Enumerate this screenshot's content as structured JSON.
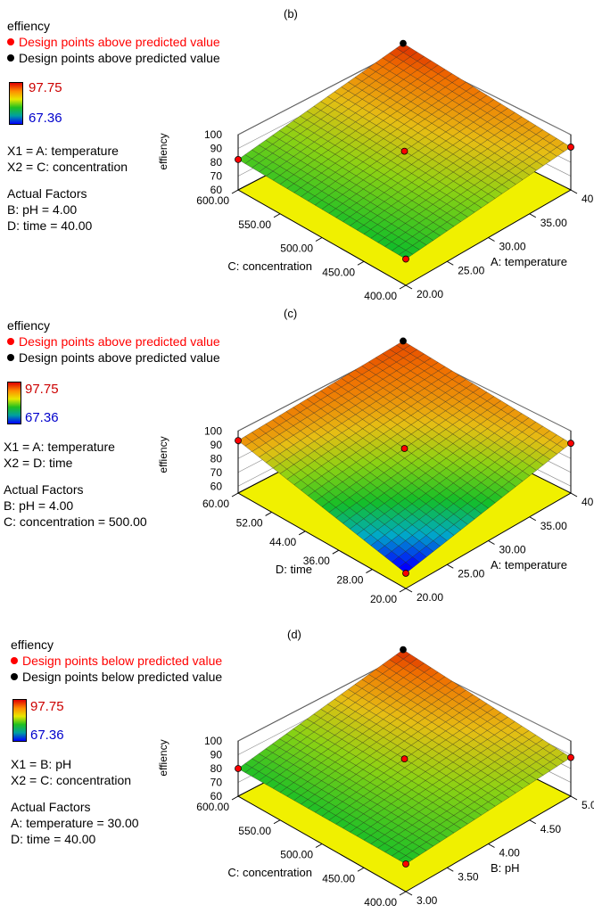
{
  "chart_data": [
    {
      "type": "surface3d",
      "panel_label": "(b)",
      "zlabel": "effiency",
      "legend": {
        "title": "effiency",
        "red_points": "Design points above predicted value",
        "black_points": "Design points above predicted value",
        "colorbar_max": "97.75",
        "colorbar_min": "67.36",
        "x1": "X1 = A: temperature",
        "x2": "X2 = C: concentration",
        "actual_factors_title": "Actual Factors",
        "factor1": "B: pH = 4.00",
        "factor2": "D: time = 40.00"
      },
      "xlabel": "A: temperature",
      "ylabel": "C: concentration",
      "x_ticks": [
        "20.00",
        "25.00",
        "30.00",
        "35.00",
        "40.00"
      ],
      "y_ticks": [
        "400.00",
        "450.00",
        "500.00",
        "550.00",
        "600.00"
      ],
      "z_ticks": [
        "60",
        "70",
        "80",
        "90",
        "100"
      ],
      "xlim": [
        20,
        40
      ],
      "ylim": [
        400,
        600
      ],
      "zlim": [
        60,
        100
      ],
      "corners": {
        "x0y0": 79,
        "x1y0": 91,
        "x0y1": 82,
        "x1y1": 97
      }
    },
    {
      "type": "surface3d",
      "panel_label": "(c)",
      "zlabel": "effiency",
      "legend": {
        "title": "effiency",
        "red_points": "Design points above predicted value",
        "black_points": "Design points above predicted value",
        "colorbar_max": "97.75",
        "colorbar_min": "67.36",
        "x1": "X1 = A: temperature",
        "x2": "X2 = D: time",
        "actual_factors_title": "Actual Factors",
        "factor1": "B: pH = 4.00",
        "factor2": "C: concentration = 500.00"
      },
      "xlabel": "A: temperature",
      "ylabel": "D: time",
      "x_ticks": [
        "20.00",
        "25.00",
        "30.00",
        "35.00",
        "40.00"
      ],
      "y_ticks": [
        "20.00",
        "28.00",
        "36.00",
        "44.00",
        "52.00",
        "60.00"
      ],
      "z_ticks": [
        "60",
        "70",
        "80",
        "90",
        "100"
      ],
      "xlim": [
        20,
        40
      ],
      "ylim": [
        20,
        60
      ],
      "zlim": [
        55,
        100
      ],
      "corners": {
        "x0y0": 66,
        "x1y0": 91,
        "x0y1": 93,
        "x1y1": 96
      }
    },
    {
      "type": "surface3d",
      "panel_label": "(d)",
      "zlabel": "effiency",
      "legend": {
        "title": "effiency",
        "red_points": "Design points below predicted value",
        "black_points": "Design points below predicted value",
        "colorbar_max": "97.75",
        "colorbar_min": "67.36",
        "x1": "X1 = B: pH",
        "x2": "X2 = C: concentration",
        "actual_factors_title": "Actual Factors",
        "factor1": "A: temperature = 30.00",
        "factor2": "D: time = 40.00"
      },
      "xlabel": "B: pH",
      "ylabel": "C: concentration",
      "x_ticks": [
        "3.00",
        "3.50",
        "4.00",
        "4.50",
        "5.00"
      ],
      "y_ticks": [
        "400.00",
        "450.00",
        "500.00",
        "550.00",
        "600.00"
      ],
      "z_ticks": [
        "60",
        "70",
        "80",
        "90",
        "100"
      ],
      "xlim": [
        3,
        5
      ],
      "ylim": [
        400,
        600
      ],
      "zlim": [
        60,
        100
      ],
      "corners": {
        "x0y0": 80,
        "x1y0": 88,
        "x0y1": 80,
        "x1y1": 97
      }
    }
  ]
}
